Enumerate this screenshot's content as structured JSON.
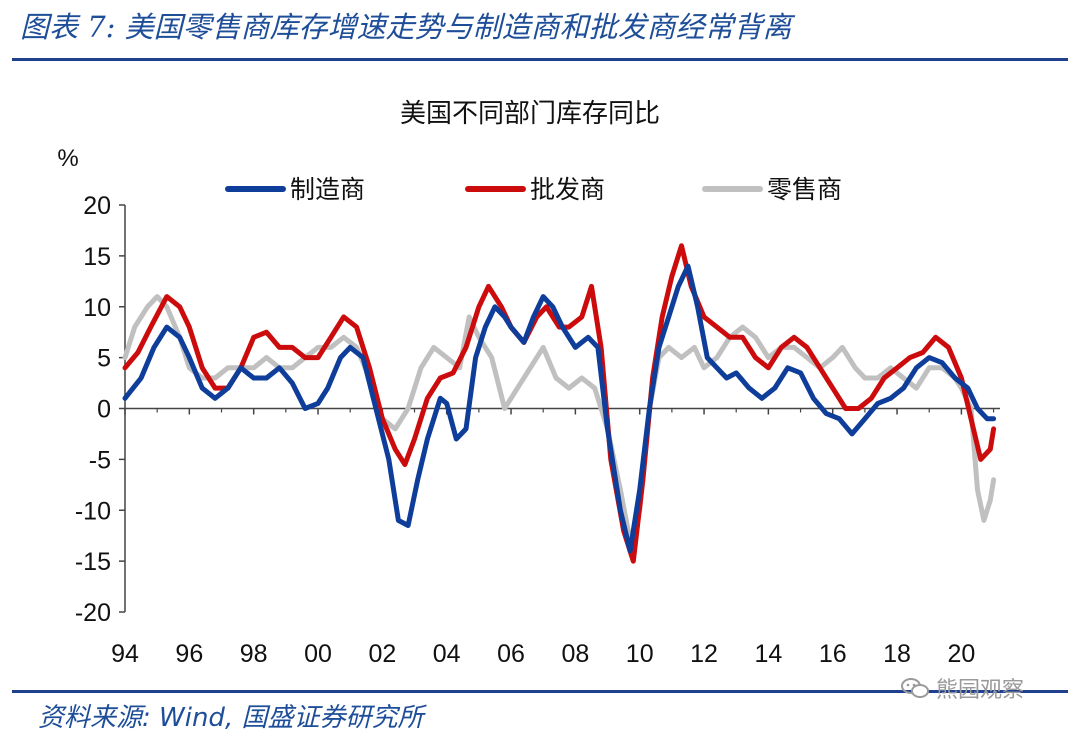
{
  "figure_title": "图表 7:  美国零售商库存增速走势与制造商和批发商经常背离",
  "source_text": "资料来源:  Wind,  国盛证券研究所",
  "watermark_text": "熊园观察",
  "watermark_icon": "wechat-icon",
  "colors": {
    "accent": "#1f4e99",
    "manufacturer": "#0e3d9a",
    "wholesaler": "#cc0c0c",
    "retailer": "#c0c0c0"
  },
  "chart_data": {
    "type": "line",
    "title": "美国不同部门库存同比",
    "ylabel": "%",
    "xlabel": "",
    "ylim": [
      -20,
      20
    ],
    "yticks": [
      20,
      15,
      10,
      5,
      0,
      -5,
      -10,
      -15,
      -20
    ],
    "xlim": [
      1994,
      2021.2
    ],
    "xticks": [
      1994,
      1996,
      1998,
      2000,
      2002,
      2004,
      2006,
      2008,
      2010,
      2012,
      2014,
      2016,
      2018,
      2020
    ],
    "xtick_labels": [
      "94",
      "96",
      "98",
      "00",
      "02",
      "04",
      "06",
      "08",
      "10",
      "12",
      "14",
      "16",
      "18",
      "20"
    ],
    "legend_position": "top",
    "series": [
      {
        "name": "制造商",
        "color": "#0e3d9a",
        "points": [
          [
            1994,
            1
          ],
          [
            1994.5,
            3
          ],
          [
            1994.9,
            6
          ],
          [
            1995.3,
            8
          ],
          [
            1995.7,
            7
          ],
          [
            1996,
            5
          ],
          [
            1996.4,
            2
          ],
          [
            1996.8,
            1
          ],
          [
            1997.2,
            2
          ],
          [
            1997.6,
            4
          ],
          [
            1998,
            3
          ],
          [
            1998.4,
            3
          ],
          [
            1998.8,
            4
          ],
          [
            1999.2,
            2.5
          ],
          [
            1999.6,
            0
          ],
          [
            2000,
            0.5
          ],
          [
            2000.3,
            2
          ],
          [
            2000.7,
            5
          ],
          [
            2001,
            6
          ],
          [
            2001.4,
            5
          ],
          [
            2001.8,
            0
          ],
          [
            2002.2,
            -5
          ],
          [
            2002.5,
            -11
          ],
          [
            2002.8,
            -11.5
          ],
          [
            2003.1,
            -7
          ],
          [
            2003.4,
            -3
          ],
          [
            2003.8,
            1
          ],
          [
            2004,
            0.5
          ],
          [
            2004.3,
            -3
          ],
          [
            2004.6,
            -2
          ],
          [
            2004.9,
            5
          ],
          [
            2005.2,
            8
          ],
          [
            2005.5,
            10
          ],
          [
            2005.8,
            9
          ],
          [
            2006,
            8
          ],
          [
            2006.4,
            6.5
          ],
          [
            2006.7,
            9
          ],
          [
            2007,
            11
          ],
          [
            2007.3,
            10
          ],
          [
            2007.6,
            8
          ],
          [
            2008,
            6
          ],
          [
            2008.4,
            7
          ],
          [
            2008.7,
            6
          ],
          [
            2009,
            -2
          ],
          [
            2009.4,
            -10
          ],
          [
            2009.7,
            -14
          ],
          [
            2010,
            -8
          ],
          [
            2010.3,
            0
          ],
          [
            2010.6,
            6
          ],
          [
            2010.9,
            9
          ],
          [
            2011.2,
            12
          ],
          [
            2011.5,
            14
          ],
          [
            2011.8,
            10
          ],
          [
            2012.1,
            5
          ],
          [
            2012.4,
            4
          ],
          [
            2012.7,
            3
          ],
          [
            2013,
            3.5
          ],
          [
            2013.4,
            2
          ],
          [
            2013.8,
            1
          ],
          [
            2014.2,
            2
          ],
          [
            2014.6,
            4
          ],
          [
            2015,
            3.5
          ],
          [
            2015.4,
            1
          ],
          [
            2015.8,
            -0.5
          ],
          [
            2016.2,
            -1
          ],
          [
            2016.6,
            -2.5
          ],
          [
            2017,
            -1
          ],
          [
            2017.4,
            0.5
          ],
          [
            2017.8,
            1
          ],
          [
            2018.2,
            2
          ],
          [
            2018.6,
            4
          ],
          [
            2019,
            5
          ],
          [
            2019.4,
            4.5
          ],
          [
            2019.8,
            3
          ],
          [
            2020.2,
            2
          ],
          [
            2020.5,
            0
          ],
          [
            2020.8,
            -1
          ],
          [
            2021,
            -1
          ]
        ]
      },
      {
        "name": "批发商",
        "color": "#cc0c0c",
        "points": [
          [
            1994,
            4
          ],
          [
            1994.4,
            5.5
          ],
          [
            1994.8,
            8
          ],
          [
            1995.3,
            11
          ],
          [
            1995.7,
            10
          ],
          [
            1996,
            8
          ],
          [
            1996.4,
            4
          ],
          [
            1996.8,
            2
          ],
          [
            1997.2,
            2
          ],
          [
            1997.6,
            4
          ],
          [
            1998,
            7
          ],
          [
            1998.4,
            7.5
          ],
          [
            1998.8,
            6
          ],
          [
            1999.2,
            6
          ],
          [
            1999.6,
            5
          ],
          [
            2000,
            5
          ],
          [
            2000.4,
            7
          ],
          [
            2000.8,
            9
          ],
          [
            2001.2,
            8
          ],
          [
            2001.6,
            4
          ],
          [
            2002,
            -1
          ],
          [
            2002.4,
            -4
          ],
          [
            2002.7,
            -5.5
          ],
          [
            2003,
            -3
          ],
          [
            2003.4,
            1
          ],
          [
            2003.8,
            3
          ],
          [
            2004.2,
            3.5
          ],
          [
            2004.6,
            6
          ],
          [
            2005,
            10
          ],
          [
            2005.3,
            12
          ],
          [
            2005.7,
            10
          ],
          [
            2006,
            8
          ],
          [
            2006.4,
            6.5
          ],
          [
            2006.8,
            9
          ],
          [
            2007.1,
            10
          ],
          [
            2007.5,
            8
          ],
          [
            2007.8,
            8
          ],
          [
            2008.2,
            9
          ],
          [
            2008.5,
            12
          ],
          [
            2008.8,
            6
          ],
          [
            2009.1,
            -5
          ],
          [
            2009.5,
            -12
          ],
          [
            2009.8,
            -15
          ],
          [
            2010.1,
            -7
          ],
          [
            2010.4,
            3
          ],
          [
            2010.7,
            9
          ],
          [
            2011,
            13
          ],
          [
            2011.3,
            16
          ],
          [
            2011.6,
            12
          ],
          [
            2012,
            9
          ],
          [
            2012.4,
            8
          ],
          [
            2012.8,
            7
          ],
          [
            2013.2,
            7
          ],
          [
            2013.6,
            5
          ],
          [
            2014,
            4
          ],
          [
            2014.4,
            6
          ],
          [
            2014.8,
            7
          ],
          [
            2015.2,
            6
          ],
          [
            2015.6,
            4
          ],
          [
            2016,
            2
          ],
          [
            2016.4,
            0
          ],
          [
            2016.8,
            0
          ],
          [
            2017.2,
            1
          ],
          [
            2017.6,
            3
          ],
          [
            2018,
            4
          ],
          [
            2018.4,
            5
          ],
          [
            2018.8,
            5.5
          ],
          [
            2019.2,
            7
          ],
          [
            2019.6,
            6
          ],
          [
            2020,
            3
          ],
          [
            2020.3,
            -1
          ],
          [
            2020.6,
            -5
          ],
          [
            2020.9,
            -4
          ],
          [
            2021,
            -2
          ]
        ]
      },
      {
        "name": "零售商",
        "color": "#c0c0c0",
        "points": [
          [
            1994,
            5
          ],
          [
            1994.3,
            8
          ],
          [
            1994.7,
            10
          ],
          [
            1995,
            11
          ],
          [
            1995.3,
            10
          ],
          [
            1995.7,
            7
          ],
          [
            1996,
            4
          ],
          [
            1996.4,
            3
          ],
          [
            1996.8,
            3
          ],
          [
            1997.2,
            4
          ],
          [
            1997.6,
            4
          ],
          [
            1998,
            4
          ],
          [
            1998.4,
            5
          ],
          [
            1998.8,
            4
          ],
          [
            1999.2,
            4
          ],
          [
            1999.6,
            5
          ],
          [
            2000,
            6
          ],
          [
            2000.4,
            6
          ],
          [
            2000.8,
            7
          ],
          [
            2001.2,
            6
          ],
          [
            2001.6,
            3
          ],
          [
            2002,
            -1
          ],
          [
            2002.4,
            -2
          ],
          [
            2002.8,
            0
          ],
          [
            2003.2,
            4
          ],
          [
            2003.6,
            6
          ],
          [
            2004,
            5
          ],
          [
            2004.4,
            4
          ],
          [
            2004.7,
            9
          ],
          [
            2005,
            7
          ],
          [
            2005.4,
            5
          ],
          [
            2005.8,
            0
          ],
          [
            2006.2,
            2
          ],
          [
            2006.6,
            4
          ],
          [
            2007,
            6
          ],
          [
            2007.4,
            3
          ],
          [
            2007.8,
            2
          ],
          [
            2008.2,
            3
          ],
          [
            2008.6,
            2
          ],
          [
            2009,
            -2
          ],
          [
            2009.4,
            -8
          ],
          [
            2009.7,
            -13
          ],
          [
            2010,
            -10
          ],
          [
            2010.3,
            0
          ],
          [
            2010.6,
            5
          ],
          [
            2010.9,
            6
          ],
          [
            2011.3,
            5
          ],
          [
            2011.7,
            6
          ],
          [
            2012,
            4
          ],
          [
            2012.4,
            5
          ],
          [
            2012.8,
            7
          ],
          [
            2013.2,
            8
          ],
          [
            2013.6,
            7
          ],
          [
            2014,
            5
          ],
          [
            2014.4,
            6
          ],
          [
            2014.8,
            6
          ],
          [
            2015.2,
            5
          ],
          [
            2015.6,
            4
          ],
          [
            2016,
            5
          ],
          [
            2016.3,
            6
          ],
          [
            2016.7,
            4
          ],
          [
            2017,
            3
          ],
          [
            2017.4,
            3
          ],
          [
            2017.8,
            4
          ],
          [
            2018.2,
            3
          ],
          [
            2018.6,
            2
          ],
          [
            2019,
            4
          ],
          [
            2019.4,
            4
          ],
          [
            2019.8,
            3
          ],
          [
            2020,
            2
          ],
          [
            2020.3,
            0
          ],
          [
            2020.5,
            -8
          ],
          [
            2020.7,
            -11
          ],
          [
            2020.9,
            -9
          ],
          [
            2021,
            -7
          ]
        ]
      }
    ]
  }
}
